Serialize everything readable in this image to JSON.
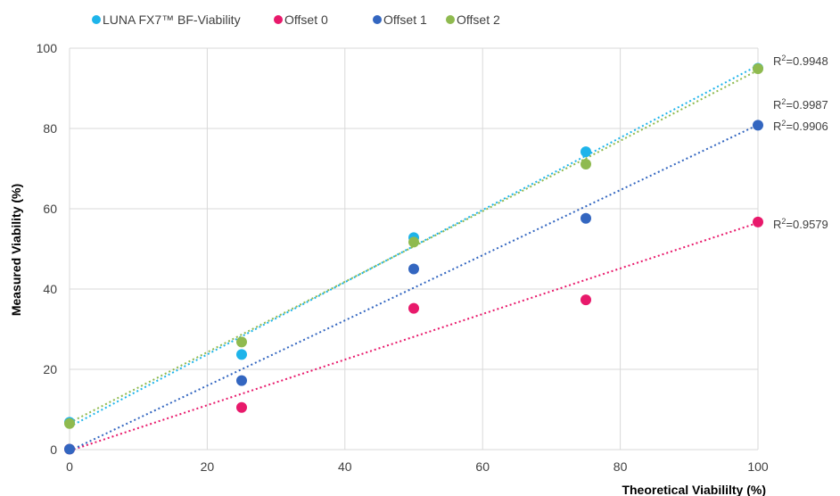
{
  "chart_data": {
    "type": "scatter",
    "title": "",
    "xlabel": "Theoretical Viabililty (%)",
    "ylabel": "Measured Viability (%)",
    "xlim": [
      0,
      100
    ],
    "ylim": [
      0,
      100
    ],
    "x_ticks": [
      0,
      20,
      40,
      60,
      80,
      100
    ],
    "y_ticks": [
      0,
      20,
      40,
      60,
      80,
      100
    ],
    "grid": true,
    "legend_position": "top",
    "series": [
      {
        "name": "LUNA FX7™ BF-Viability",
        "color": "#1eb4ea",
        "x": [
          0,
          25,
          50,
          75,
          100
        ],
        "y": [
          6.8,
          23.7,
          52.8,
          74.2,
          95.0
        ],
        "trendline": {
          "y_start": 5.7,
          "y_end": 95.7,
          "r2_prefix": "R",
          "r2_sup": "2",
          "r2_value": "=0.9948"
        }
      },
      {
        "name": "Offset 0",
        "color": "#e8196b",
        "x": [
          0,
          25,
          50,
          75,
          100
        ],
        "y": [
          0.1,
          10.5,
          35.2,
          37.3,
          56.7
        ],
        "trendline": {
          "y_start": -0.3,
          "y_end": 56.5,
          "r2_prefix": "R",
          "r2_sup": "2",
          "r2_value": "=0.9579"
        }
      },
      {
        "name": "Offset 1",
        "color": "#3366c0",
        "x": [
          0,
          25,
          50,
          75,
          100
        ],
        "y": [
          0.1,
          17.2,
          45.0,
          57.6,
          80.8
        ],
        "trendline": {
          "y_start": -0.3,
          "y_end": 80.9,
          "r2_prefix": "R",
          "r2_sup": "2",
          "r2_value": "=0.9906"
        }
      },
      {
        "name": "Offset 2",
        "color": "#8fba4f",
        "x": [
          0,
          25,
          50,
          75,
          100
        ],
        "y": [
          6.5,
          26.8,
          51.7,
          71.1,
          94.9
        ],
        "trendline": {
          "y_start": 6.7,
          "y_end": 94.5,
          "r2_prefix": "R",
          "r2_sup": "2",
          "r2_value": "=0.9987"
        }
      }
    ]
  }
}
